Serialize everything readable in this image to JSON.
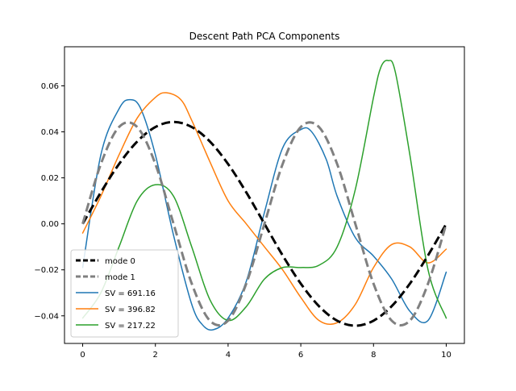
{
  "chart_data": {
    "type": "line",
    "title": "Descent Path PCA Components",
    "xlabel": "",
    "ylabel": "",
    "xlim": [
      -0.5,
      10.5
    ],
    "ylim": [
      -0.052,
      0.077
    ],
    "xticks": [
      0,
      2,
      4,
      6,
      8,
      10
    ],
    "yticks": [
      -0.04,
      -0.02,
      0.0,
      0.02,
      0.04,
      0.06
    ],
    "ytick_labels": [
      "−0.04",
      "−0.02",
      "0.00",
      "0.02",
      "0.04",
      "0.06"
    ],
    "xtick_labels": [
      "0",
      "2",
      "4",
      "6",
      "8",
      "10"
    ],
    "grid": false,
    "legend_position": "lower-left",
    "series": [
      {
        "name": "mode 0",
        "color": "#000000",
        "style": "dashed",
        "x": [
          0,
          0.5,
          1,
          1.5,
          2,
          2.5,
          3,
          3.5,
          4,
          4.5,
          5,
          5.5,
          6,
          6.5,
          7,
          7.5,
          8,
          8.5,
          9,
          9.5,
          10
        ],
        "y": [
          0.0,
          0.0137,
          0.026,
          0.0358,
          0.0421,
          0.0443,
          0.0421,
          0.0358,
          0.026,
          0.0137,
          0.0,
          -0.0137,
          -0.026,
          -0.0358,
          -0.0421,
          -0.0443,
          -0.0421,
          -0.0358,
          -0.026,
          -0.0137,
          0.0
        ]
      },
      {
        "name": "mode 1",
        "color": "#808080",
        "style": "dashed",
        "x": [
          0,
          0.5,
          1,
          1.5,
          2,
          2.5,
          3,
          3.5,
          4,
          4.5,
          5,
          5.5,
          6,
          6.5,
          7,
          7.5,
          8,
          8.5,
          9,
          9.5,
          10
        ],
        "y": [
          0.0,
          0.026,
          0.0421,
          0.0421,
          0.026,
          0.0,
          -0.026,
          -0.0421,
          -0.0421,
          -0.026,
          0.0,
          0.026,
          0.0421,
          0.0421,
          0.026,
          0.0,
          -0.026,
          -0.0421,
          -0.0421,
          -0.026,
          0.0
        ]
      },
      {
        "name": "SV = 691.16",
        "color": "#1f77b4",
        "style": "solid",
        "x": [
          0,
          0.5,
          1,
          1.3,
          1.6,
          2,
          2.5,
          3,
          3.3,
          3.6,
          4,
          4.5,
          5,
          5.5,
          6,
          6.3,
          6.7,
          7,
          7.5,
          8,
          8.5,
          9,
          9.5,
          10
        ],
        "y": [
          -0.019,
          0.03,
          0.05,
          0.054,
          0.05,
          0.03,
          -0.005,
          -0.035,
          -0.044,
          -0.046,
          -0.041,
          -0.025,
          0.005,
          0.033,
          0.041,
          0.04,
          0.028,
          0.012,
          -0.006,
          -0.014,
          -0.024,
          -0.038,
          -0.042,
          -0.021
        ]
      },
      {
        "name": "SV = 396.82",
        "color": "#ff7f0e",
        "style": "solid",
        "x": [
          0,
          0.5,
          1,
          1.5,
          2,
          2.3,
          2.7,
          3,
          3.5,
          4,
          4.5,
          5,
          5.5,
          6,
          6.5,
          7,
          7.5,
          8,
          8.5,
          9,
          9.5,
          10
        ],
        "y": [
          -0.004,
          0.012,
          0.03,
          0.046,
          0.055,
          0.057,
          0.054,
          0.045,
          0.027,
          0.01,
          0.0,
          -0.01,
          -0.02,
          -0.032,
          -0.042,
          -0.043,
          -0.035,
          -0.019,
          -0.009,
          -0.01,
          -0.017,
          -0.011
        ]
      },
      {
        "name": "SV = 217.22",
        "color": "#2ca02c",
        "style": "solid",
        "x": [
          0,
          0.5,
          1,
          1.5,
          2,
          2.5,
          3,
          3.5,
          4,
          4.5,
          5,
          5.5,
          6,
          6.5,
          7,
          7.5,
          8,
          8.2,
          8.4,
          8.6,
          9,
          9.5,
          10
        ],
        "y": [
          -0.041,
          -0.03,
          -0.01,
          0.01,
          0.017,
          0.012,
          -0.01,
          -0.033,
          -0.042,
          -0.036,
          -0.024,
          -0.019,
          -0.019,
          -0.018,
          -0.01,
          0.015,
          0.055,
          0.068,
          0.071,
          0.066,
          0.03,
          -0.02,
          -0.041
        ]
      }
    ]
  }
}
